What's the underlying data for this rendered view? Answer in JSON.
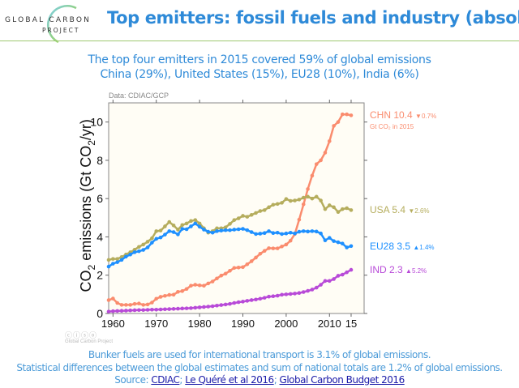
{
  "logo": {
    "line1": "GLOBAL CARBON",
    "line2": "PROJECT"
  },
  "header": {
    "title": "Top emitters: fossil fuels and industry (absolute)"
  },
  "subtitle": {
    "line1": "The top four emitters in 2015 covered 59% of global emissions",
    "line2": "China (29%), United States (15%), EU28 (10%), India (6%)"
  },
  "data_source": "Data: CDIAC/GCP",
  "license": {
    "icons": "ⓒⓘⓢⓞ",
    "text": "Global Carbon Project"
  },
  "footer": {
    "line1": "Bunker fuels are used for international transport is 3.1% of global emissions.",
    "line2": "Statistical differences between the global estimates and sum of national totals are 1.2% of global emissions.",
    "source_prefix": "Source: ",
    "links": [
      "CDIAC",
      "Le Quéré et al 2016",
      "Global Carbon Budget 2016"
    ]
  },
  "chart_data": {
    "type": "line",
    "title": "Top emitters: fossil fuels and industry (absolute)",
    "xlabel": "",
    "ylabel": "CO2 emissions (Gt CO2/yr)",
    "xlim": [
      1959,
      2018
    ],
    "ylim": [
      0,
      11
    ],
    "x_ticks": [
      1960,
      1970,
      1980,
      1990,
      2000,
      2010,
      2015
    ],
    "x_tick_labels": [
      "1960",
      "1970",
      "1980",
      "1990",
      "2000",
      "2010",
      "15"
    ],
    "y_ticks": [
      0,
      2,
      4,
      6,
      8,
      10
    ],
    "y_tick_labels": [
      "0",
      "2",
      "4",
      "6",
      "8",
      "10"
    ],
    "grid": false,
    "legend": "right (direct labels)",
    "background": "#fffdf5",
    "x": [
      1959,
      1960,
      1961,
      1962,
      1963,
      1964,
      1965,
      1966,
      1967,
      1968,
      1969,
      1970,
      1971,
      1972,
      1973,
      1974,
      1975,
      1976,
      1977,
      1978,
      1979,
      1980,
      1981,
      1982,
      1983,
      1984,
      1985,
      1986,
      1987,
      1988,
      1989,
      1990,
      1991,
      1992,
      1993,
      1994,
      1995,
      1996,
      1997,
      1998,
      1999,
      2000,
      2001,
      2002,
      2003,
      2004,
      2005,
      2006,
      2007,
      2008,
      2009,
      2010,
      2011,
      2012,
      2013,
      2014,
      2015
    ],
    "series": [
      {
        "name": "CHN",
        "color": "#fa8c6e",
        "label": "CHN 10.4",
        "change": "0.7%",
        "direction": "down",
        "note": "Gt CO₂ in 2015",
        "values": [
          0.7,
          0.78,
          0.55,
          0.45,
          0.45,
          0.45,
          0.5,
          0.52,
          0.45,
          0.47,
          0.57,
          0.77,
          0.87,
          0.92,
          0.97,
          0.98,
          1.13,
          1.17,
          1.28,
          1.45,
          1.5,
          1.47,
          1.45,
          1.57,
          1.67,
          1.83,
          1.98,
          2.08,
          2.23,
          2.38,
          2.4,
          2.42,
          2.57,
          2.73,
          2.92,
          3.12,
          3.27,
          3.41,
          3.4,
          3.4,
          3.5,
          3.6,
          3.8,
          4.15,
          4.9,
          5.7,
          6.5,
          7.2,
          7.8,
          8.0,
          8.4,
          9.0,
          9.8,
          10.0,
          10.4,
          10.4,
          10.35
        ]
      },
      {
        "name": "USA",
        "color": "#b5ad5d",
        "label": "USA 5.4",
        "change": "2.6%",
        "direction": "down",
        "values": [
          2.8,
          2.85,
          2.85,
          2.95,
          3.08,
          3.2,
          3.33,
          3.48,
          3.6,
          3.75,
          3.93,
          4.3,
          4.33,
          4.55,
          4.78,
          4.6,
          4.38,
          4.62,
          4.7,
          4.83,
          4.88,
          4.7,
          4.45,
          4.22,
          4.3,
          4.45,
          4.45,
          4.5,
          4.68,
          4.88,
          4.97,
          5.1,
          5.05,
          5.15,
          5.25,
          5.35,
          5.4,
          5.55,
          5.68,
          5.72,
          5.78,
          5.98,
          5.88,
          5.9,
          5.95,
          6.05,
          6.1,
          6.0,
          6.1,
          5.9,
          5.45,
          5.65,
          5.55,
          5.3,
          5.45,
          5.5,
          5.4
        ]
      },
      {
        "name": "EU28",
        "color": "#1e90ff",
        "label": "EU28 3.5",
        "change": "1.4%",
        "direction": "up",
        "values": [
          2.45,
          2.6,
          2.68,
          2.8,
          2.97,
          3.08,
          3.2,
          3.25,
          3.32,
          3.45,
          3.7,
          3.9,
          3.97,
          4.12,
          4.3,
          4.25,
          4.13,
          4.42,
          4.4,
          4.55,
          4.7,
          4.53,
          4.38,
          4.27,
          4.22,
          4.3,
          4.33,
          4.35,
          4.35,
          4.38,
          4.4,
          4.42,
          4.35,
          4.25,
          4.15,
          4.17,
          4.2,
          4.3,
          4.2,
          4.22,
          4.15,
          4.18,
          4.22,
          4.18,
          4.27,
          4.3,
          4.28,
          4.3,
          4.28,
          4.18,
          3.82,
          3.95,
          3.78,
          3.72,
          3.65,
          3.45,
          3.52
        ]
      },
      {
        "name": "IND",
        "color": "#b84ad8",
        "label": "IND 2.3",
        "change": "5.2%",
        "direction": "up",
        "values": [
          0.1,
          0.12,
          0.13,
          0.14,
          0.15,
          0.16,
          0.17,
          0.18,
          0.18,
          0.19,
          0.2,
          0.2,
          0.21,
          0.22,
          0.23,
          0.24,
          0.25,
          0.26,
          0.27,
          0.28,
          0.3,
          0.32,
          0.34,
          0.36,
          0.38,
          0.41,
          0.44,
          0.47,
          0.5,
          0.55,
          0.59,
          0.62,
          0.66,
          0.7,
          0.73,
          0.77,
          0.82,
          0.88,
          0.9,
          0.93,
          0.98,
          1.0,
          1.02,
          1.04,
          1.07,
          1.12,
          1.18,
          1.25,
          1.35,
          1.5,
          1.7,
          1.7,
          1.8,
          1.97,
          2.03,
          2.15,
          2.28
        ]
      }
    ]
  }
}
